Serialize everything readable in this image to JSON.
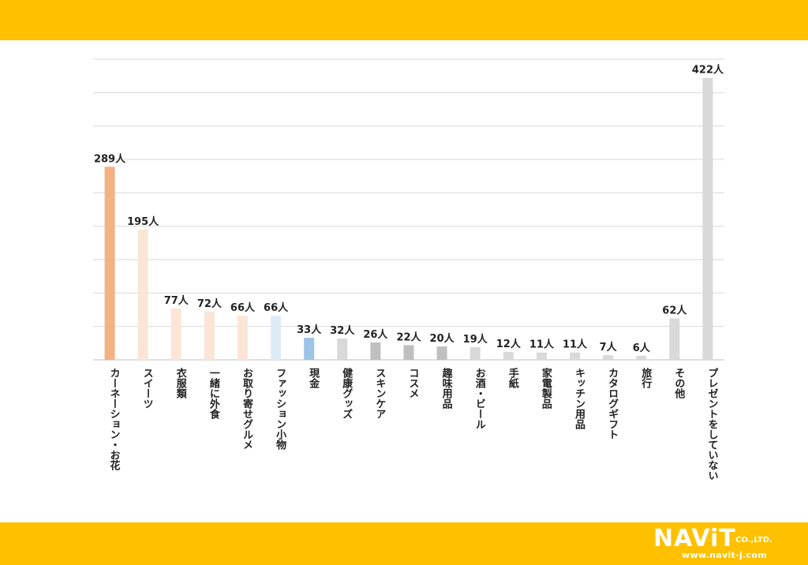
{
  "chart_data": {
    "type": "bar",
    "categories": [
      "カーネーション・お花",
      "スイーツ",
      "衣服類",
      "一緒に外食",
      "お取り寄せグルメ",
      "ファッション小物",
      "現金",
      "健康グッズ",
      "スキンケア",
      "コスメ",
      "趣味用品",
      "お酒・ビール",
      "手紙",
      "家電製品",
      "キッチン用品",
      "カタログギフト",
      "旅行",
      "その他",
      "プレゼントをしていない"
    ],
    "values": [
      289,
      195,
      77,
      72,
      66,
      66,
      33,
      32,
      26,
      22,
      20,
      19,
      12,
      11,
      11,
      7,
      6,
      62,
      422
    ],
    "value_labels": [
      "289人",
      "195人",
      "77人",
      "72人",
      "66人",
      "66人",
      "33人",
      "32人",
      "26人",
      "22人",
      "20人",
      "19人",
      "12人",
      "11人",
      "11人",
      "7人",
      "6人",
      "62人",
      "422人"
    ],
    "colors": [
      "#f4b183",
      "#fbe5d6",
      "#fbe5d6",
      "#fbe5d6",
      "#fbe5d6",
      "#deebf7",
      "#9dc3e6",
      "#d9d9d9",
      "#bfbfbf",
      "#bfbfbf",
      "#bfbfbf",
      "#d9d9d9",
      "#d9d9d9",
      "#d9d9d9",
      "#d9d9d9",
      "#d9d9d9",
      "#d9d9d9",
      "#d9d9d9",
      "#d9d9d9"
    ],
    "ylim": [
      0,
      450
    ],
    "grid": true,
    "legend": "none"
  },
  "branding": {
    "logo_name": "NAViT",
    "logo_suffix": "CO.,LTD.",
    "logo_url": "www.navit-j.com",
    "band_color": "#ffc000"
  }
}
